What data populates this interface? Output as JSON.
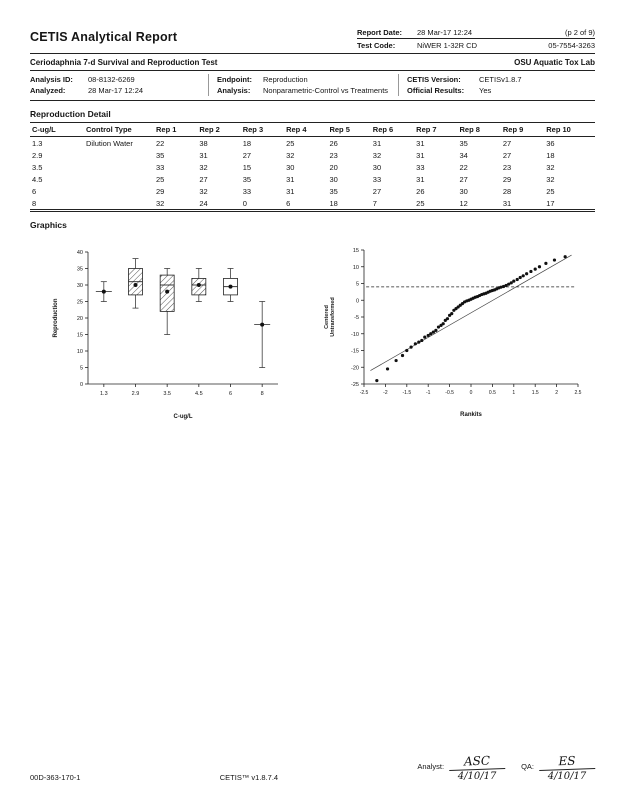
{
  "header": {
    "title": "CETIS Analytical Report",
    "report_date_label": "Report Date:",
    "report_date": "28 Mar-17 12:24",
    "report_page": "(p 2 of 9)",
    "test_code_label": "Test Code:",
    "test_code": "NiWER 1-32R CD",
    "test_code2": "05-7554-3263"
  },
  "subheader": {
    "test_name": "Ceriodaphnia 7-d Survival and Reproduction Test",
    "lab": "OSU Aquatic Tox Lab"
  },
  "analysis_info": {
    "analysis_id_label": "Analysis ID:",
    "analysis_id": "08-8132-6269",
    "analyzed_label": "Analyzed:",
    "analyzed": "28 Mar-17 12:24",
    "endpoint_label": "Endpoint:",
    "endpoint": "Reproduction",
    "analysis_label": "Analysis:",
    "analysis": "Nonparametric-Control vs Treatments",
    "cetis_version_label": "CETIS Version:",
    "cetis_version": "CETISv1.8.7",
    "official_results_label": "Official Results:",
    "official_results": "Yes"
  },
  "repro_detail": {
    "section_title": "Reproduction Detail",
    "columns": [
      "C-ug/L",
      "Control Type",
      "Rep 1",
      "Rep 2",
      "Rep 3",
      "Rep 4",
      "Rep 5",
      "Rep 6",
      "Rep 7",
      "Rep 8",
      "Rep 9",
      "Rep 10"
    ],
    "rows": [
      [
        "1.3",
        "Dilution Water",
        "22",
        "38",
        "18",
        "25",
        "26",
        "31",
        "31",
        "35",
        "27",
        "36"
      ],
      [
        "2.9",
        "",
        "35",
        "31",
        "27",
        "32",
        "23",
        "32",
        "31",
        "34",
        "27",
        "18"
      ],
      [
        "3.5",
        "",
        "33",
        "32",
        "15",
        "30",
        "20",
        "30",
        "33",
        "22",
        "23",
        "32"
      ],
      [
        "4.5",
        "",
        "25",
        "27",
        "35",
        "31",
        "30",
        "33",
        "31",
        "27",
        "29",
        "32"
      ],
      [
        "6",
        "",
        "29",
        "32",
        "33",
        "31",
        "35",
        "27",
        "26",
        "30",
        "28",
        "25"
      ],
      [
        "8",
        "",
        "32",
        "24",
        "0",
        "6",
        "18",
        "7",
        "25",
        "12",
        "31",
        "17"
      ]
    ]
  },
  "graphics": {
    "section_title": "Graphics"
  },
  "chart_data": [
    {
      "type": "box",
      "title": "",
      "xlabel": "C-ug/L",
      "ylabel": "Reproduction",
      "ylim": [
        0,
        40
      ],
      "yticks": [
        0,
        5,
        10,
        15,
        20,
        25,
        30,
        35,
        40
      ],
      "categories": [
        "1.3",
        "2.9",
        "3.5",
        "4.5",
        "6",
        "8"
      ],
      "boxes": [
        {
          "kind": "mean",
          "mean": 28,
          "low": 25,
          "high": 31
        },
        {
          "kind": "box-hatched",
          "low": 23,
          "q1": 27,
          "median": 31,
          "q3": 35,
          "high": 38,
          "mean": 30
        },
        {
          "kind": "box-hatched",
          "low": 15,
          "q1": 22,
          "median": 30,
          "q3": 33,
          "high": 35,
          "mean": 28
        },
        {
          "kind": "box-hatched",
          "low": 25,
          "q1": 27,
          "median": 30,
          "q3": 32,
          "high": 35,
          "mean": 30
        },
        {
          "kind": "box-open",
          "low": 25,
          "q1": 27,
          "median": 29.5,
          "q3": 32,
          "high": 35,
          "mean": 29.5
        },
        {
          "kind": "mean",
          "mean": 18,
          "low": 5,
          "high": 25
        }
      ]
    },
    {
      "type": "scatter",
      "title": "",
      "xlabel": "Rankits",
      "ylabel": "Centered Untransformed",
      "xlim": [
        -2.5,
        2.5
      ],
      "ylim": [
        -25,
        15
      ],
      "xticks": [
        -2.5,
        -2,
        -1.5,
        -1,
        -0.5,
        0,
        0.5,
        1,
        1.5,
        2,
        2.5
      ],
      "yticks": [
        -25,
        -20,
        -15,
        -10,
        -5,
        0,
        5,
        10,
        15
      ],
      "fit_line": {
        "x1": -2.35,
        "y1": -21,
        "x2": 2.35,
        "y2": 13.5
      },
      "dashed_line_y": 4,
      "points": [
        [
          -2.2,
          -24
        ],
        [
          -1.95,
          -20.5
        ],
        [
          -1.75,
          -18
        ],
        [
          -1.6,
          -16.5
        ],
        [
          -1.5,
          -15
        ],
        [
          -1.4,
          -14
        ],
        [
          -1.3,
          -13
        ],
        [
          -1.22,
          -12.5
        ],
        [
          -1.15,
          -12
        ],
        [
          -1.08,
          -11
        ],
        [
          -1.0,
          -10.5
        ],
        [
          -0.94,
          -10
        ],
        [
          -0.88,
          -9.5
        ],
        [
          -0.82,
          -9
        ],
        [
          -0.76,
          -8
        ],
        [
          -0.7,
          -7.5
        ],
        [
          -0.65,
          -7
        ],
        [
          -0.6,
          -6
        ],
        [
          -0.55,
          -5.5
        ],
        [
          -0.5,
          -4.5
        ],
        [
          -0.45,
          -4
        ],
        [
          -0.4,
          -3
        ],
        [
          -0.35,
          -2.5
        ],
        [
          -0.3,
          -2
        ],
        [
          -0.25,
          -1.5
        ],
        [
          -0.2,
          -1
        ],
        [
          -0.15,
          -0.5
        ],
        [
          -0.1,
          -0.2
        ],
        [
          -0.05,
          0
        ],
        [
          0,
          0.3
        ],
        [
          0.05,
          0.6
        ],
        [
          0.1,
          0.9
        ],
        [
          0.15,
          1.1
        ],
        [
          0.2,
          1.4
        ],
        [
          0.25,
          1.7
        ],
        [
          0.3,
          1.9
        ],
        [
          0.35,
          2.1
        ],
        [
          0.4,
          2.4
        ],
        [
          0.45,
          2.7
        ],
        [
          0.5,
          2.9
        ],
        [
          0.55,
          3.1
        ],
        [
          0.6,
          3.4
        ],
        [
          0.65,
          3.7
        ],
        [
          0.7,
          3.9
        ],
        [
          0.76,
          4.1
        ],
        [
          0.82,
          4.4
        ],
        [
          0.88,
          4.8
        ],
        [
          0.94,
          5.2
        ],
        [
          1.0,
          5.7
        ],
        [
          1.08,
          6.2
        ],
        [
          1.15,
          6.8
        ],
        [
          1.22,
          7.3
        ],
        [
          1.3,
          7.9
        ],
        [
          1.4,
          8.6
        ],
        [
          1.5,
          9.3
        ],
        [
          1.6,
          10
        ],
        [
          1.75,
          11
        ],
        [
          1.95,
          12
        ],
        [
          2.2,
          13
        ]
      ]
    }
  ],
  "footer": {
    "doc_id": "00D-363-170-1",
    "app_version": "CETIS™ v1.8.7.4",
    "analyst_label": "Analyst:",
    "analyst_sig": "ASC",
    "analyst_date": "4/10/17",
    "qa_label": "QA:",
    "qa_sig": "ES",
    "qa_date": "4/10/17"
  }
}
